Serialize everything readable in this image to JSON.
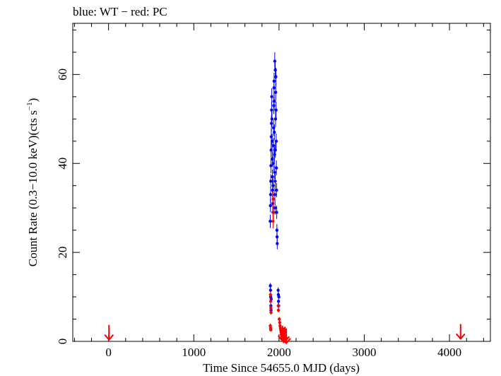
{
  "chart_data": {
    "type": "scatter",
    "title": "blue: WT − red: PC",
    "xlabel": "Time Since 54655.0 MJD (days)",
    "ylabel": "Count Rate (0.3−10.0 keV)(cts s",
    "ylabel_sup": "−1",
    "ylabel_tail": ")",
    "xlim": [
      -420,
      4480
    ],
    "ylim": [
      0,
      71.5
    ],
    "xticks": [
      0,
      1000,
      2000,
      3000,
      4000
    ],
    "yticks": [
      0,
      20,
      40,
      60
    ],
    "grid": false,
    "legend": "none",
    "series": [
      {
        "color": "#0000ff",
        "marker": "filled-circle-with-errorbars",
        "points": [
          {
            "x": 1897,
            "y": 27.0,
            "e": 1.5
          },
          {
            "x": 1899,
            "y": 30.5,
            "e": 1.5
          },
          {
            "x": 1901,
            "y": 33.0,
            "e": 1.6
          },
          {
            "x": 1903,
            "y": 36.0,
            "e": 1.6
          },
          {
            "x": 1905,
            "y": 39.5,
            "e": 1.7
          },
          {
            "x": 1907,
            "y": 43.0,
            "e": 1.7
          },
          {
            "x": 1909,
            "y": 46.0,
            "e": 1.8
          },
          {
            "x": 1911,
            "y": 49.0,
            "e": 1.8
          },
          {
            "x": 1913,
            "y": 52.0,
            "e": 1.9
          },
          {
            "x": 1915,
            "y": 55.0,
            "e": 1.9
          },
          {
            "x": 1917,
            "y": 50.0,
            "e": 1.8
          },
          {
            "x": 1919,
            "y": 45.0,
            "e": 1.7
          },
          {
            "x": 1921,
            "y": 41.0,
            "e": 1.7
          },
          {
            "x": 1923,
            "y": 37.0,
            "e": 1.6
          },
          {
            "x": 1925,
            "y": 34.0,
            "e": 1.6
          },
          {
            "x": 1927,
            "y": 31.0,
            "e": 1.5
          },
          {
            "x": 1929,
            "y": 29.0,
            "e": 1.5
          },
          {
            "x": 1931,
            "y": 35.0,
            "e": 1.6
          },
          {
            "x": 1933,
            "y": 40.0,
            "e": 1.7
          },
          {
            "x": 1935,
            "y": 44.0,
            "e": 1.7
          },
          {
            "x": 1937,
            "y": 48.0,
            "e": 1.8
          },
          {
            "x": 1939,
            "y": 53.0,
            "e": 1.9
          },
          {
            "x": 1941,
            "y": 57.0,
            "e": 1.9
          },
          {
            "x": 1943,
            "y": 54.0,
            "e": 1.9
          },
          {
            "x": 1945,
            "y": 47.0,
            "e": 1.8
          },
          {
            "x": 1947,
            "y": 42.0,
            "e": 1.7
          },
          {
            "x": 1949,
            "y": 38.0,
            "e": 1.6
          },
          {
            "x": 1951,
            "y": 33.0,
            "e": 1.6
          },
          {
            "x": 1953,
            "y": 30.0,
            "e": 1.5
          },
          {
            "x": 1955,
            "y": 36.0,
            "e": 1.6
          },
          {
            "x": 1957,
            "y": 43.0,
            "e": 1.7
          },
          {
            "x": 1959,
            "y": 50.0,
            "e": 1.8
          },
          {
            "x": 1961,
            "y": 56.0,
            "e": 1.9
          },
          {
            "x": 1963,
            "y": 59.5,
            "e": 2.0
          },
          {
            "x": 1965,
            "y": 52.0,
            "e": 1.9
          },
          {
            "x": 1967,
            "y": 45.0,
            "e": 1.7
          },
          {
            "x": 1969,
            "y": 39.0,
            "e": 1.7
          },
          {
            "x": 1971,
            "y": 34.0,
            "e": 1.6
          },
          {
            "x": 1973,
            "y": 29.0,
            "e": 1.5
          },
          {
            "x": 1975,
            "y": 25.0,
            "e": 1.4
          },
          {
            "x": 1977,
            "y": 23.5,
            "e": 1.3
          },
          {
            "x": 1979,
            "y": 22.0,
            "e": 1.3
          },
          {
            "x": 1950,
            "y": 63.0,
            "e": 2.0
          },
          {
            "x": 1956,
            "y": 61.0,
            "e": 2.0
          },
          {
            "x": 1942,
            "y": 58.5,
            "e": 1.9
          },
          {
            "x": 1898,
            "y": 12.5,
            "e": 0.6
          },
          {
            "x": 1900,
            "y": 11.5,
            "e": 0.6
          },
          {
            "x": 1902,
            "y": 10.0,
            "e": 0.5
          },
          {
            "x": 1904,
            "y": 8.0,
            "e": 0.5
          },
          {
            "x": 1906,
            "y": 7.0,
            "e": 0.5
          },
          {
            "x": 1908,
            "y": 9.5,
            "e": 0.5
          },
          {
            "x": 1990,
            "y": 11.5,
            "e": 0.6
          },
          {
            "x": 1992,
            "y": 10.5,
            "e": 0.6
          },
          {
            "x": 1994,
            "y": 9.0,
            "e": 0.5
          },
          {
            "x": 1996,
            "y": 8.0,
            "e": 0.5
          },
          {
            "x": 1998,
            "y": 10.0,
            "e": 0.5
          }
        ]
      },
      {
        "color": "#ff0000",
        "marker": "filled-circle-with-errorbars",
        "points": [
          {
            "x": 1932,
            "y": 32.0,
            "e": 1.8
          },
          {
            "x": 1934,
            "y": 29.0,
            "e": 1.7
          },
          {
            "x": 1930,
            "y": 27.0,
            "e": 1.6
          },
          {
            "x": 1900,
            "y": 10.5,
            "e": 0.7
          },
          {
            "x": 1902,
            "y": 9.0,
            "e": 0.6
          },
          {
            "x": 1904,
            "y": 7.5,
            "e": 0.6
          },
          {
            "x": 1906,
            "y": 6.5,
            "e": 0.5
          },
          {
            "x": 1898,
            "y": 3.5,
            "e": 0.5
          },
          {
            "x": 1901,
            "y": 3.0,
            "e": 0.5
          },
          {
            "x": 1903,
            "y": 2.6,
            "e": 0.4
          },
          {
            "x": 1991,
            "y": 8.0,
            "e": 0.6
          },
          {
            "x": 1993,
            "y": 7.0,
            "e": 0.5
          },
          {
            "x": 2003,
            "y": 5.0,
            "e": 0.5
          },
          {
            "x": 2008,
            "y": 4.2,
            "e": 0.5
          },
          {
            "x": 2012,
            "y": 3.5,
            "e": 0.5
          },
          {
            "x": 2016,
            "y": 3.0,
            "e": 0.5
          },
          {
            "x": 2020,
            "y": 2.5,
            "e": 0.4
          },
          {
            "x": 2024,
            "y": 2.0,
            "e": 0.4
          },
          {
            "x": 2028,
            "y": 1.5,
            "e": 0.4
          },
          {
            "x": 2033,
            "y": 1.2,
            "e": 0.4
          },
          {
            "x": 2038,
            "y": 1.0,
            "e": 0.3
          },
          {
            "x": 2045,
            "y": 0.8,
            "e": 0.3
          },
          {
            "x": 2055,
            "y": 1.3,
            "e": 0.4
          },
          {
            "x": 2065,
            "y": 0.9,
            "e": 0.3
          }
        ]
      },
      {
        "color": "#ff0000",
        "marker": "upper-limit-arrow",
        "points": [
          {
            "x": 5,
            "y": 1.8
          },
          {
            "x": 2040,
            "y": 1.6
          },
          {
            "x": 2055,
            "y": 1.2
          },
          {
            "x": 2070,
            "y": 1.4
          },
          {
            "x": 2085,
            "y": 1.0
          },
          {
            "x": 4130,
            "y": 2.0
          }
        ]
      }
    ]
  }
}
